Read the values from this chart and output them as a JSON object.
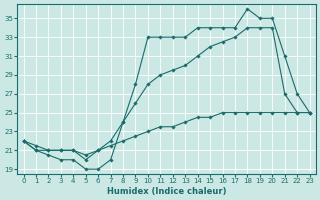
{
  "bg_color": "#cce8e5",
  "line_color": "#1a6b6b",
  "grid_color": "#b0d5d0",
  "xlabel": "Humidex (Indice chaleur)",
  "xlim": [
    -0.5,
    23.5
  ],
  "ylim": [
    18.5,
    36.5
  ],
  "xticks": [
    0,
    1,
    2,
    3,
    4,
    5,
    6,
    7,
    8,
    9,
    10,
    11,
    12,
    13,
    14,
    15,
    16,
    17,
    18,
    19,
    20,
    21,
    22,
    23
  ],
  "yticks": [
    19,
    21,
    23,
    25,
    27,
    29,
    31,
    33,
    35
  ],
  "curve1_x": [
    0,
    1,
    2,
    3,
    4,
    5,
    6,
    7,
    8,
    9,
    10,
    11,
    12,
    13,
    14,
    15,
    16,
    17,
    18,
    19,
    20,
    21,
    22,
    23
  ],
  "curve1_y": [
    22,
    21,
    20.5,
    20,
    20,
    19,
    19,
    20,
    24,
    28,
    33,
    33,
    33,
    33,
    34,
    34,
    34,
    34,
    36,
    35,
    35,
    31,
    27,
    25
  ],
  "curve2_x": [
    0,
    1,
    2,
    3,
    4,
    5,
    6,
    7,
    8,
    9,
    10,
    11,
    12,
    13,
    14,
    15,
    16,
    17,
    18,
    19,
    20,
    21,
    22,
    23
  ],
  "curve2_y": [
    22,
    21,
    21,
    21,
    21,
    20,
    21,
    22,
    24,
    26,
    28,
    29,
    29.5,
    30,
    31,
    32,
    32.5,
    33,
    34,
    34,
    34,
    27,
    25,
    25
  ],
  "curve3_x": [
    0,
    1,
    2,
    3,
    4,
    5,
    6,
    7,
    8,
    9,
    10,
    11,
    12,
    13,
    14,
    15,
    16,
    17,
    18,
    19,
    20,
    21,
    22,
    23
  ],
  "curve3_y": [
    22,
    21.5,
    21,
    21,
    21,
    20.5,
    21,
    21.5,
    22,
    22.5,
    23,
    23.5,
    23.5,
    24,
    24.5,
    24.5,
    25,
    25,
    25,
    25,
    25,
    25,
    25,
    25
  ]
}
